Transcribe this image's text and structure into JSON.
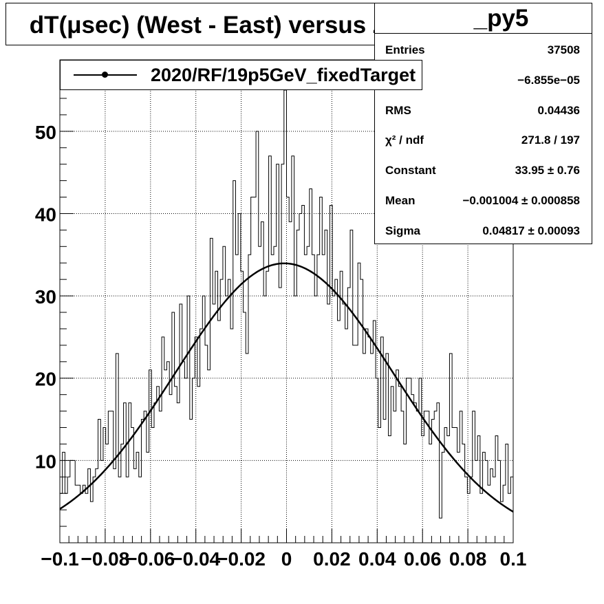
{
  "title": "dT(μsec) (West - East) versus Z",
  "stats": {
    "name": "_py5",
    "rows": [
      {
        "label": "Entries",
        "value": "37508"
      },
      {
        "label": "",
        "value": "−6.855e−05"
      },
      {
        "label": "RMS",
        "value": "0.04436"
      },
      {
        "label": "χ² / ndf",
        "value": "271.8 / 197"
      },
      {
        "label": "Constant",
        "value": "33.95 ± 0.76"
      },
      {
        "label": "Mean",
        "value": "−0.001004 ± 0.000858"
      },
      {
        "label": "Sigma",
        "value": "0.04817 ± 0.00093"
      }
    ]
  },
  "legend": {
    "label": "2020/RF/19p5GeV_fixedTarget"
  },
  "chart_data": {
    "type": "line",
    "title": "dT(μsec) (West - East) versus Z",
    "xlabel": "",
    "ylabel": "",
    "xlim": [
      -0.1,
      0.1
    ],
    "ylim": [
      0,
      55
    ],
    "grid": true,
    "xticks": [
      -0.1,
      -0.08,
      -0.06,
      -0.04,
      -0.02,
      0,
      0.02,
      0.04,
      0.06,
      0.08,
      0.1
    ],
    "xtick_labels": [
      "−0.1",
      "−0.08",
      "−0.06",
      "−0.04",
      "−0.02",
      "0",
      "0.02",
      "0.04",
      "0.06",
      "0.08",
      "0.1"
    ],
    "yticks": [
      10,
      20,
      30,
      40,
      50
    ],
    "ytick_labels": [
      "10",
      "20",
      "30",
      "40",
      "50"
    ],
    "series": [
      {
        "name": "2020/RF/19p5GeV_fixedTarget",
        "kind": "histogram",
        "x_start": -0.1,
        "x_end": 0.1,
        "values": [
          6,
          11,
          6,
          8,
          10,
          10,
          7,
          7,
          6,
          7,
          6,
          9,
          5,
          8,
          9,
          15,
          10,
          14,
          12,
          16,
          16,
          9,
          23,
          8,
          12,
          17,
          8,
          17,
          14,
          9,
          11,
          8,
          15,
          16,
          11,
          21,
          14,
          17,
          19,
          16,
          25,
          21,
          22,
          18,
          28,
          19,
          17,
          29,
          22,
          20,
          30,
          15,
          20,
          25,
          19,
          26,
          30,
          24,
          21,
          37,
          29,
          33,
          27,
          32,
          36,
          30,
          32,
          26,
          44,
          35,
          40,
          33,
          28,
          23,
          35,
          42,
          42,
          50,
          36,
          39,
          30,
          33,
          47,
          35,
          36,
          46,
          31,
          46,
          55,
          42,
          39,
          47,
          30,
          38,
          40,
          41,
          35,
          36,
          43,
          35,
          30,
          35,
          42,
          35,
          38,
          29,
          41,
          30,
          32,
          27,
          33,
          29,
          26,
          31,
          38,
          24,
          24,
          34,
          32,
          23,
          26,
          25,
          23,
          27,
          20,
          14,
          25,
          15,
          23,
          13,
          19,
          16,
          21,
          19,
          16,
          12,
          20,
          20,
          18,
          17,
          16,
          20,
          13,
          16,
          16,
          12,
          15,
          16,
          17,
          3,
          11,
          14,
          13,
          23,
          14,
          14,
          11,
          16,
          12,
          8,
          6,
          8,
          16,
          10,
          13,
          6,
          11,
          10,
          7,
          9,
          8,
          13,
          10,
          5,
          7,
          12,
          6,
          8
        ]
      },
      {
        "name": "gaus fit",
        "kind": "function",
        "constant": 33.95,
        "mean": -0.001004,
        "sigma": 0.04817
      }
    ]
  }
}
